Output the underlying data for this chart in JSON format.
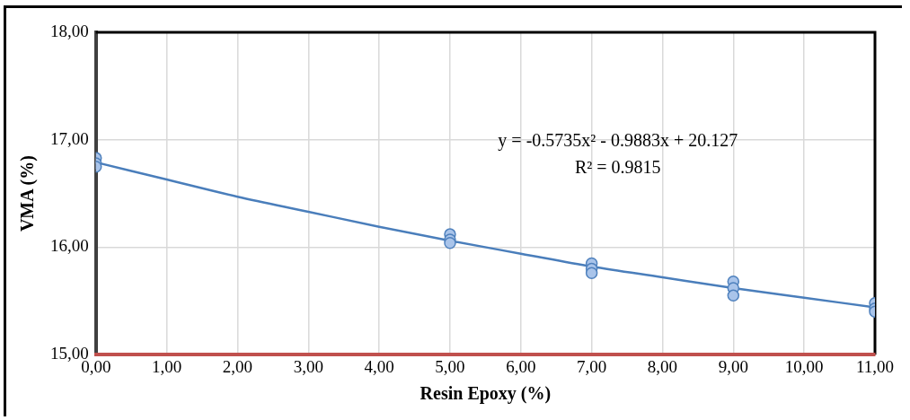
{
  "chart_data": {
    "type": "scatter",
    "xlabel": "Resin Epoxy (%)",
    "ylabel": "VMA (%)",
    "xlim": [
      0,
      11
    ],
    "xticks": [
      {
        "value": 0,
        "label": "0,00"
      },
      {
        "value": 1,
        "label": "1,00"
      },
      {
        "value": 2,
        "label": "2,00"
      },
      {
        "value": 3,
        "label": "3,00"
      },
      {
        "value": 4,
        "label": "4,00"
      },
      {
        "value": 5,
        "label": "5,00"
      },
      {
        "value": 6,
        "label": "6,00"
      },
      {
        "value": 7,
        "label": "7,00"
      },
      {
        "value": 8,
        "label": "8,00"
      },
      {
        "value": 9,
        "label": "9,00"
      },
      {
        "value": 10,
        "label": "10,00"
      },
      {
        "value": 11,
        "label": "11,00"
      }
    ],
    "ylim": [
      15,
      18
    ],
    "yticks": [
      {
        "value": 15,
        "label": "15,00"
      },
      {
        "value": 16,
        "label": "16,00"
      },
      {
        "value": 17,
        "label": "17,00"
      },
      {
        "value": 18,
        "label": "18,00"
      }
    ],
    "grid": true,
    "legend": false,
    "series": [
      {
        "type": "scatter",
        "color": "#4f81bd",
        "marker": "circle",
        "x": [
          0,
          0,
          0,
          5,
          5,
          5,
          7,
          7,
          7,
          9,
          9,
          9,
          11,
          11,
          11
        ],
        "values": [
          16.83,
          16.78,
          16.75,
          16.12,
          16.07,
          16.04,
          15.85,
          15.8,
          15.76,
          15.68,
          15.62,
          15.55,
          15.48,
          15.43,
          15.4
        ]
      },
      {
        "type": "line",
        "color": "#4a7ebb",
        "marker": "none",
        "line_style": "solid",
        "x": [
          0,
          1,
          2,
          3,
          4,
          5,
          6,
          7,
          8,
          9,
          10,
          11
        ],
        "values": [
          16.79,
          16.63,
          16.47,
          16.33,
          16.19,
          16.06,
          15.94,
          15.82,
          15.72,
          15.62,
          15.53,
          15.44
        ]
      }
    ],
    "annotations": [
      "y = -0.5735x² - 0.9883x + 20.127",
      "R² = 0.9815"
    ]
  }
}
